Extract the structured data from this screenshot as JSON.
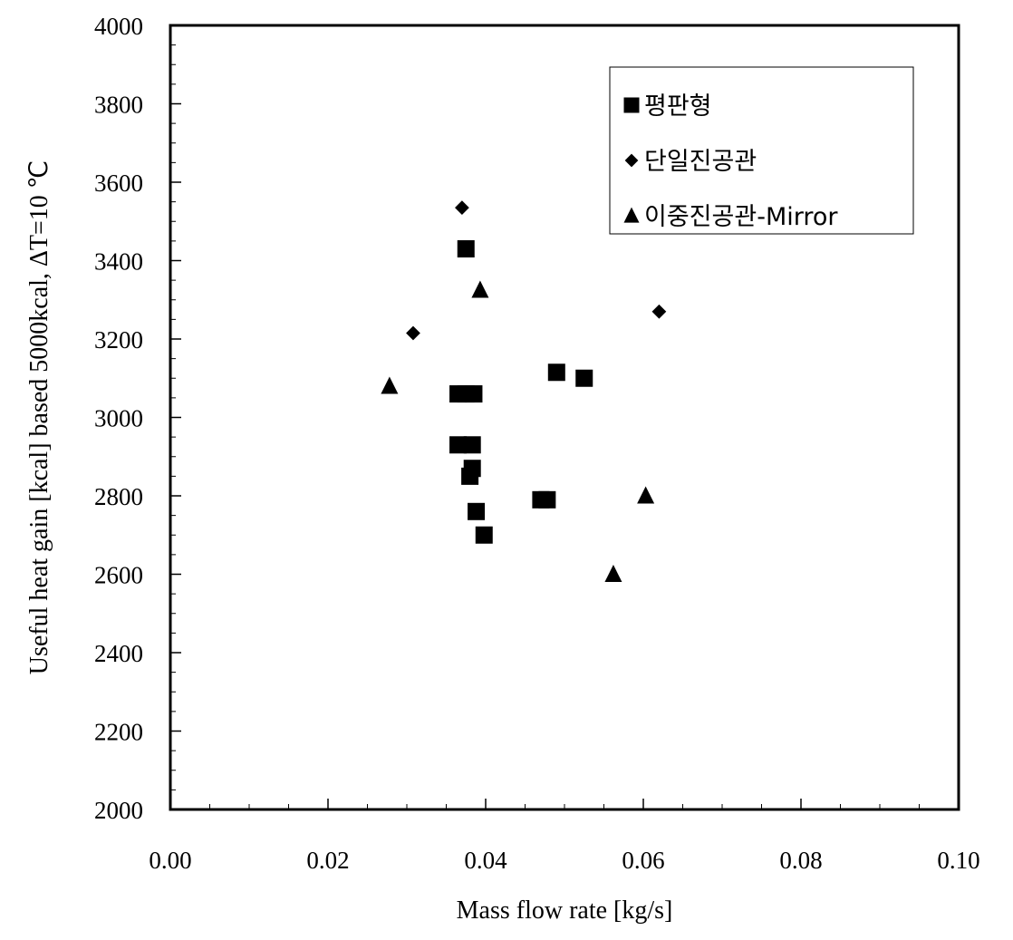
{
  "chart_data": {
    "type": "scatter",
    "xlabel": "Mass flow rate [kg/s]",
    "ylabel": "Useful heat gain [kcal] based 5000kcal, ΔT=10 ℃",
    "xlim": [
      0.0,
      0.1
    ],
    "ylim": [
      2000,
      4000
    ],
    "x_ticks": [
      "0.00",
      "0.02",
      "0.04",
      "0.06",
      "0.08",
      "0.10"
    ],
    "y_ticks": [
      "2000",
      "2200",
      "2400",
      "2600",
      "2800",
      "3000",
      "3200",
      "3400",
      "3600",
      "3800",
      "4000"
    ],
    "grid": false,
    "legend_position": "top-right",
    "series": [
      {
        "name": "평판형",
        "marker": "square",
        "color": "#000000",
        "points": [
          [
            0.0375,
            3430
          ],
          [
            0.0365,
            3060
          ],
          [
            0.0375,
            3060
          ],
          [
            0.0385,
            3060
          ],
          [
            0.0365,
            2930
          ],
          [
            0.0383,
            2930
          ],
          [
            0.0383,
            2870
          ],
          [
            0.038,
            2850
          ],
          [
            0.0388,
            2760
          ],
          [
            0.0398,
            2700
          ],
          [
            0.047,
            2790
          ],
          [
            0.0478,
            2790
          ],
          [
            0.049,
            3115
          ],
          [
            0.0525,
            3100
          ]
        ]
      },
      {
        "name": "단일진공관",
        "marker": "diamond",
        "color": "#000000",
        "points": [
          [
            0.037,
            3535
          ],
          [
            0.0308,
            3215
          ],
          [
            0.062,
            3270
          ]
        ]
      },
      {
        "name": "이중진공관-Mirror",
        "marker": "triangle",
        "color": "#000000",
        "points": [
          [
            0.0393,
            3325
          ],
          [
            0.0278,
            3080
          ],
          [
            0.0603,
            2800
          ],
          [
            0.0562,
            2600
          ]
        ]
      }
    ]
  }
}
